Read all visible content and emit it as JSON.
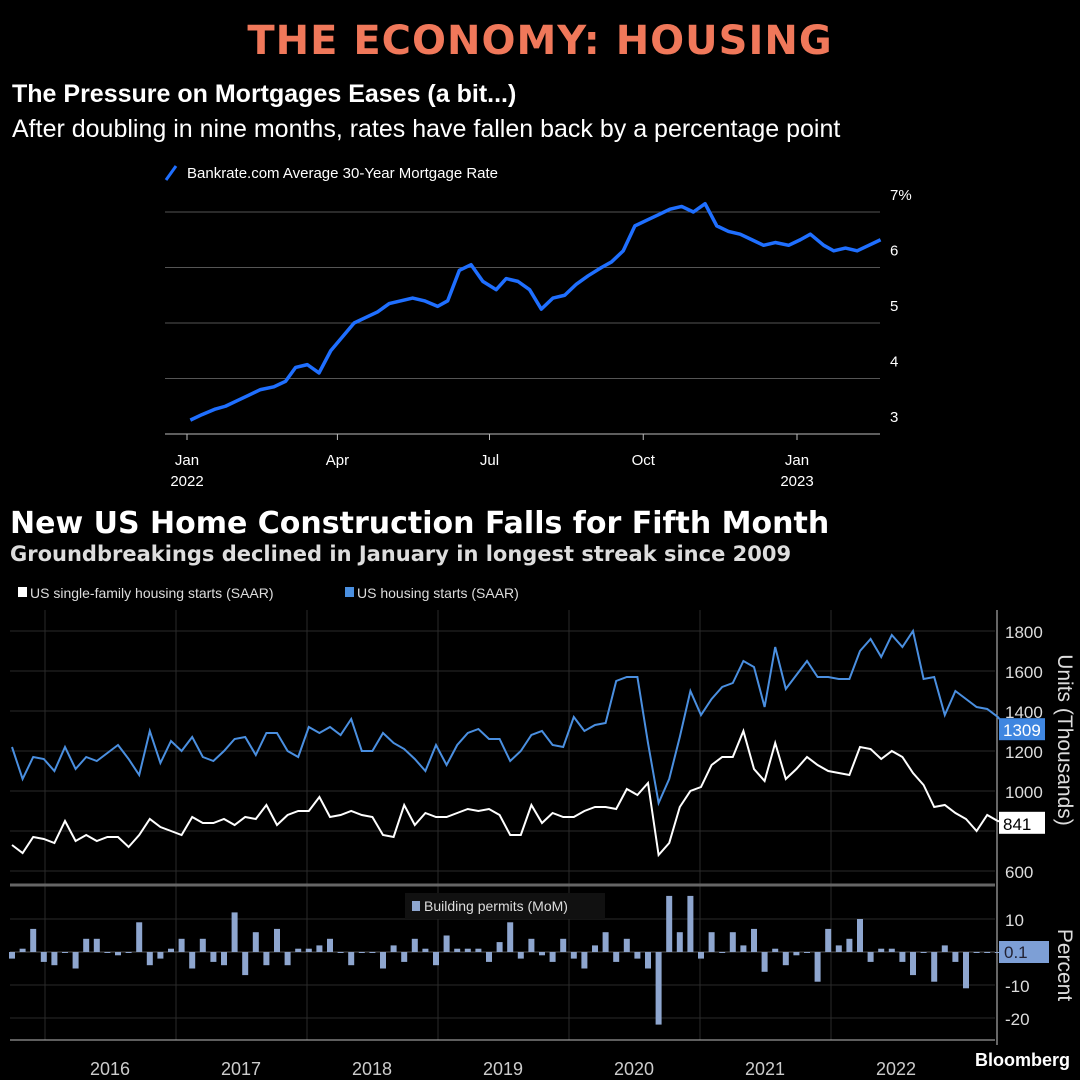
{
  "header": {
    "kicker": "THE ECONOMY: HOUSING",
    "brand": "Bloomberg"
  },
  "chart_data": [
    {
      "type": "line",
      "title": "The Pressure on Mortgages Eases (a bit...)",
      "subtitle": "After doubling in nine months, rates have fallen back by a percentage point",
      "series": [
        {
          "name": "Bankrate.com Average 30-Year Mortgage Rate",
          "color": "#1f6fff",
          "points": [
            [
              "2022-01-03",
              3.25
            ],
            [
              "2022-01-10",
              3.35
            ],
            [
              "2022-01-18",
              3.45
            ],
            [
              "2022-01-24",
              3.5
            ],
            [
              "2022-01-31",
              3.6
            ],
            [
              "2022-02-07",
              3.7
            ],
            [
              "2022-02-14",
              3.8
            ],
            [
              "2022-02-22",
              3.85
            ],
            [
              "2022-03-01",
              3.95
            ],
            [
              "2022-03-07",
              4.2
            ],
            [
              "2022-03-14",
              4.25
            ],
            [
              "2022-03-21",
              4.1
            ],
            [
              "2022-03-28",
              4.5
            ],
            [
              "2022-04-04",
              4.75
            ],
            [
              "2022-04-11",
              5.0
            ],
            [
              "2022-04-18",
              5.1
            ],
            [
              "2022-04-25",
              5.2
            ],
            [
              "2022-05-02",
              5.35
            ],
            [
              "2022-05-09",
              5.4
            ],
            [
              "2022-05-16",
              5.45
            ],
            [
              "2022-05-23",
              5.4
            ],
            [
              "2022-05-31",
              5.3
            ],
            [
              "2022-06-06",
              5.4
            ],
            [
              "2022-06-13",
              5.95
            ],
            [
              "2022-06-20",
              6.05
            ],
            [
              "2022-06-27",
              5.75
            ],
            [
              "2022-07-05",
              5.6
            ],
            [
              "2022-07-11",
              5.8
            ],
            [
              "2022-07-18",
              5.75
            ],
            [
              "2022-07-25",
              5.6
            ],
            [
              "2022-08-01",
              5.25
            ],
            [
              "2022-08-08",
              5.45
            ],
            [
              "2022-08-15",
              5.5
            ],
            [
              "2022-08-22",
              5.7
            ],
            [
              "2022-08-29",
              5.85
            ],
            [
              "2022-09-06",
              6.0
            ],
            [
              "2022-09-12",
              6.1
            ],
            [
              "2022-09-19",
              6.3
            ],
            [
              "2022-09-26",
              6.75
            ],
            [
              "2022-10-03",
              6.85
            ],
            [
              "2022-10-10",
              6.95
            ],
            [
              "2022-10-17",
              7.05
            ],
            [
              "2022-10-24",
              7.1
            ],
            [
              "2022-10-31",
              7.0
            ],
            [
              "2022-11-07",
              7.15
            ],
            [
              "2022-11-14",
              6.75
            ],
            [
              "2022-11-21",
              6.65
            ],
            [
              "2022-11-28",
              6.6
            ],
            [
              "2022-12-05",
              6.5
            ],
            [
              "2022-12-12",
              6.4
            ],
            [
              "2022-12-19",
              6.45
            ],
            [
              "2022-12-27",
              6.4
            ],
            [
              "2023-01-03",
              6.5
            ],
            [
              "2023-01-09",
              6.6
            ],
            [
              "2023-01-17",
              6.4
            ],
            [
              "2023-01-23",
              6.3
            ],
            [
              "2023-01-30",
              6.35
            ],
            [
              "2023-02-06",
              6.3
            ],
            [
              "2023-02-13",
              6.4
            ],
            [
              "2023-02-20",
              6.5
            ]
          ]
        }
      ],
      "ylim": [
        3,
        7
      ],
      "yticks": [
        "3",
        "4",
        "5",
        "6",
        "7%"
      ],
      "xticks": [
        {
          "label": "Jan",
          "sub": "2022",
          "date": "2022-01-01"
        },
        {
          "label": "Apr",
          "sub": "",
          "date": "2022-04-01"
        },
        {
          "label": "Jul",
          "sub": "",
          "date": "2022-07-01"
        },
        {
          "label": "Oct",
          "sub": "",
          "date": "2022-10-01"
        },
        {
          "label": "Jan",
          "sub": "2023",
          "date": "2023-01-01"
        }
      ],
      "grid": true,
      "legend": "top-left"
    },
    {
      "type": "line",
      "title": "New US Home Construction Falls for Fifth Month",
      "subtitle": "Groundbreakings declined in January in longest streak since 2009",
      "ylabel": "Units (Thousands)",
      "ylim": [
        600,
        1800
      ],
      "yticks": [
        "600",
        "1000",
        "1200",
        "1400",
        "1600",
        "1800"
      ],
      "xticks": [
        "2016",
        "2017",
        "2018",
        "2019",
        "2020",
        "2021",
        "2022"
      ],
      "series": [
        {
          "name": "US single-family housing starts (SAAR)",
          "color": "#ffffff",
          "last_label": "841",
          "by_year": {
            "2015": [
              730,
              690,
              770,
              760,
              740,
              850,
              750,
              780,
              750,
              770
            ],
            "2016": [
              770,
              720,
              780,
              860,
              820,
              800,
              780,
              870,
              840,
              840,
              860,
              830
            ],
            "2017": [
              870,
              860,
              930,
              830,
              880,
              900,
              900,
              970,
              870,
              880,
              900,
              880
            ],
            "2018": [
              870,
              780,
              770,
              930,
              830,
              890,
              870,
              870,
              890,
              910,
              900,
              910
            ],
            "2019": [
              880,
              780,
              780,
              930,
              840,
              890,
              870,
              870,
              900,
              920,
              920,
              910
            ],
            "2020": [
              1010,
              980,
              1040,
              680,
              740,
              920,
              1000,
              1020,
              1130,
              1170,
              1170,
              1300
            ],
            "2021": [
              1110,
              1050,
              1240,
              1060,
              1110,
              1170,
              1130,
              1100,
              1090,
              1080,
              1220,
              1210
            ],
            "2022": [
              1160,
              1200,
              1170,
              1090,
              1030,
              920,
              930,
              890,
              860,
              800,
              880,
              850
            ],
            "2023": [
              841
            ]
          }
        },
        {
          "name": "US housing starts (SAAR)",
          "color": "#4a8fe0",
          "last_label": "1309",
          "by_year": {
            "2015": [
              1220,
              1060,
              1170,
              1160,
              1100,
              1220,
              1110,
              1170,
              1150,
              1190
            ],
            "2016": [
              1230,
              1160,
              1080,
              1300,
              1140,
              1250,
              1200,
              1270,
              1170,
              1150,
              1200,
              1260
            ],
            "2017": [
              1270,
              1180,
              1290,
              1290,
              1200,
              1170,
              1320,
              1290,
              1320,
              1280,
              1360,
              1200
            ],
            "2018": [
              1200,
              1290,
              1240,
              1210,
              1160,
              1100,
              1230,
              1130,
              1230,
              1290,
              1310,
              1260
            ],
            "2019": [
              1260,
              1150,
              1200,
              1280,
              1300,
              1230,
              1220,
              1370,
              1300,
              1330,
              1340,
              1550
            ],
            "2020": [
              1570,
              1570,
              1240,
              940,
              1060,
              1270,
              1500,
              1380,
              1460,
              1520,
              1540,
              1650
            ],
            "2021": [
              1620,
              1420,
              1720,
              1510,
              1580,
              1650,
              1570,
              1570,
              1560,
              1560,
              1700,
              1760
            ],
            "2022": [
              1670,
              1780,
              1720,
              1800,
              1560,
              1570,
              1380,
              1500,
              1460,
              1420,
              1410,
              1370
            ],
            "2023": [
              1309
            ]
          }
        }
      ],
      "legend": "top-left"
    },
    {
      "type": "bar",
      "ylabel": "Percent",
      "ylim": [
        -22,
        18
      ],
      "yticks": [
        "-20",
        "-10",
        "10"
      ],
      "series": [
        {
          "name": "Building permits (MoM)",
          "color": "#8ea6cf",
          "last_label": "0.1",
          "by_year": {
            "2015": [
              -2,
              1,
              7,
              -3,
              -4,
              0,
              -5,
              4,
              4,
              0
            ],
            "2016": [
              -1,
              0,
              9,
              -4,
              -2,
              1,
              4,
              -5,
              4,
              -3,
              -4,
              12
            ],
            "2017": [
              -7,
              6,
              -4,
              7,
              -4,
              1,
              1,
              2,
              4,
              0,
              -4,
              0
            ],
            "2018": [
              0,
              -5,
              2,
              -3,
              4,
              1,
              -4,
              5,
              1,
              1,
              1,
              -3
            ],
            "2019": [
              3,
              9,
              -2,
              4,
              -1,
              -3,
              4,
              -2,
              -5,
              2,
              6,
              -3
            ],
            "2020": [
              4,
              -2,
              -5,
              -22,
              17,
              6,
              17,
              -2,
              6,
              0,
              6,
              2
            ],
            "2021": [
              7,
              -6,
              1,
              -4,
              -1,
              0,
              -9,
              7,
              2,
              4,
              10,
              -3
            ],
            "2022": [
              1,
              1,
              -3,
              -7,
              0,
              -9,
              2,
              -3,
              -11,
              0,
              0,
              0
            ],
            "2023": [
              0.1
            ]
          }
        }
      ]
    }
  ]
}
